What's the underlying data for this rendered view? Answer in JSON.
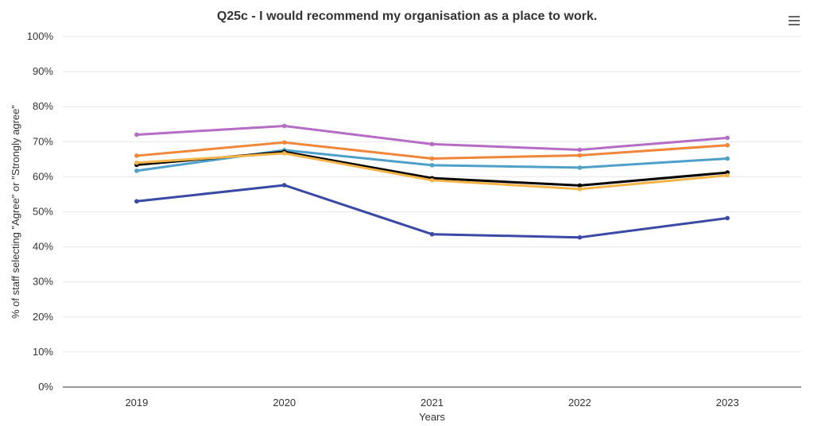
{
  "chart_data": {
    "type": "line",
    "title": "Q25c - I would recommend my organisation as a place to work.",
    "xlabel": "Years",
    "ylabel": "% of staff selecting \"Agree\" or \"Strongly agree\"",
    "categories": [
      "2019",
      "2020",
      "2021",
      "2022",
      "2023"
    ],
    "ylim": [
      0,
      100
    ],
    "yticks": [
      0,
      10,
      20,
      30,
      40,
      50,
      60,
      70,
      80,
      90,
      100
    ],
    "ytick_labels": [
      "0%",
      "10%",
      "20%",
      "30%",
      "40%",
      "50%",
      "60%",
      "70%",
      "80%",
      "90%",
      "100%"
    ],
    "grid": true,
    "legend": "none",
    "series": [
      {
        "color": "#b56cc4",
        "values": [
          72.0,
          74.5,
          69.3,
          67.7,
          71.1
        ]
      },
      {
        "color": "#f0863a",
        "values": [
          66.0,
          69.8,
          65.2,
          66.1,
          69.0
        ]
      },
      {
        "color": "#4fa0c8",
        "values": [
          61.7,
          67.6,
          63.3,
          62.6,
          65.2
        ]
      },
      {
        "color": "#000000",
        "values": [
          63.4,
          67.1,
          59.6,
          57.5,
          61.2
        ]
      },
      {
        "color": "#f3b44a",
        "values": [
          64.0,
          66.7,
          59.0,
          56.5,
          60.4
        ]
      },
      {
        "color": "#3a49a4",
        "values": [
          53.0,
          57.6,
          43.6,
          42.7,
          48.2
        ]
      }
    ]
  }
}
